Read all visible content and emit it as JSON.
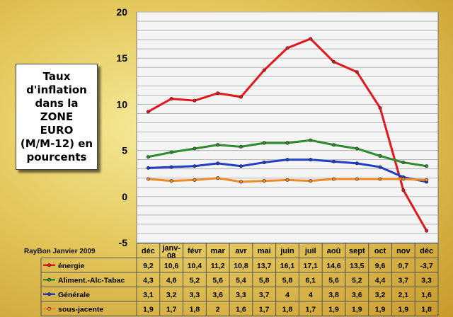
{
  "title_box": [
    "Taux",
    "d'inflation",
    "dans la ZONE",
    "EURO",
    "(M/M-12) en",
    "pourcents"
  ],
  "credit": "RayBon Janvier 2009",
  "chart_data": {
    "type": "line",
    "title": "Taux d'inflation dans la ZONE EURO (M/M-12) en pourcents",
    "categories": [
      "déc",
      "janv-08",
      "févr",
      "mar",
      "avr",
      "mai",
      "juin",
      "juil",
      "aoû",
      "sept",
      "oct",
      "nov",
      "déc"
    ],
    "ylim": [
      -5,
      20
    ],
    "yticks": [
      -5,
      0,
      5,
      10,
      15,
      20
    ],
    "grid": true,
    "data_table": true,
    "series": [
      {
        "name": "énergie",
        "color": "#e3171b",
        "values": [
          9.2,
          10.6,
          10.4,
          11.2,
          10.8,
          13.7,
          16.1,
          17.1,
          14.6,
          13.5,
          9.6,
          0.7,
          -3.7
        ],
        "labels": [
          "9,2",
          "10,6",
          "10,4",
          "11,2",
          "10,8",
          "13,7",
          "16,1",
          "17,1",
          "14,6",
          "13,5",
          "9,6",
          "0,7",
          "-3,7"
        ]
      },
      {
        "name": "Aliment.-Alc-Tabac",
        "color": "#2e8b2e",
        "values": [
          4.3,
          4.8,
          5.2,
          5.6,
          5.4,
          5.8,
          5.8,
          6.1,
          5.6,
          5.2,
          4.4,
          3.7,
          3.3
        ],
        "labels": [
          "4,3",
          "4,8",
          "5,2",
          "5,6",
          "5,4",
          "5,8",
          "5,8",
          "6,1",
          "5,6",
          "5,2",
          "4,4",
          "3,7",
          "3,3"
        ]
      },
      {
        "name": "Générale",
        "color": "#1f3fc4",
        "values": [
          3.1,
          3.2,
          3.3,
          3.6,
          3.3,
          3.7,
          4.0,
          4.0,
          3.8,
          3.6,
          3.2,
          2.1,
          1.6
        ],
        "labels": [
          "3,1",
          "3,2",
          "3,3",
          "3,6",
          "3,3",
          "3,7",
          "4",
          "4",
          "3,8",
          "3,6",
          "3,2",
          "2,1",
          "1,6"
        ]
      },
      {
        "name": "sous-jacente",
        "color": "#f08a24",
        "values": [
          1.9,
          1.7,
          1.8,
          2.0,
          1.6,
          1.7,
          1.8,
          1.7,
          1.9,
          1.9,
          1.9,
          1.9,
          1.8
        ],
        "labels": [
          "1,9",
          "1,7",
          "1,8",
          "2",
          "1,6",
          "1,7",
          "1,8",
          "1,7",
          "1,9",
          "1,9",
          "1,9",
          "1,9",
          "1,8"
        ]
      }
    ]
  }
}
